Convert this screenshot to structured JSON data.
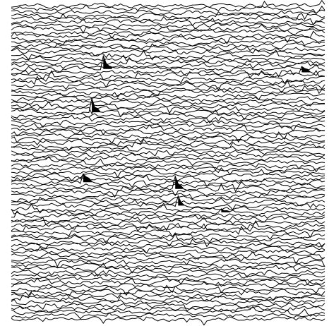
{
  "chart_data": {
    "type": "line",
    "title": "",
    "xlabel": "",
    "ylabel": "",
    "grid": false,
    "legend": "none",
    "colors": {
      "trace": "#000000",
      "background": "#ffffff"
    },
    "trace_count": 95,
    "samples_per_trace": 110,
    "noise_amplitude": 3.2,
    "events": [
      {
        "trace": 19,
        "sample": 32,
        "amplitude": 17,
        "polarity": 1
      },
      {
        "trace": 21,
        "sample": 32,
        "amplitude": 9,
        "polarity": -1
      },
      {
        "trace": 20,
        "sample": 101,
        "amplitude": 7,
        "polarity": 1
      },
      {
        "trace": 32,
        "sample": 28,
        "amplitude": 20,
        "polarity": 1
      },
      {
        "trace": 53,
        "sample": 25,
        "amplitude": 15,
        "polarity": 1
      },
      {
        "trace": 55,
        "sample": 57,
        "amplitude": 18,
        "polarity": 1
      },
      {
        "trace": 60,
        "sample": 58,
        "amplitude": 14,
        "polarity": 1
      },
      {
        "trace": 64,
        "sample": 12,
        "amplitude": 7,
        "polarity": -1
      },
      {
        "trace": 62,
        "sample": 73,
        "amplitude": 6,
        "polarity": 1
      },
      {
        "trace": 86,
        "sample": 20,
        "amplitude": 7,
        "polarity": -1
      },
      {
        "trace": 87,
        "sample": 81,
        "amplitude": 6,
        "polarity": -1
      },
      {
        "trace": 90,
        "sample": 61,
        "amplitude": 9,
        "polarity": -1
      }
    ]
  }
}
